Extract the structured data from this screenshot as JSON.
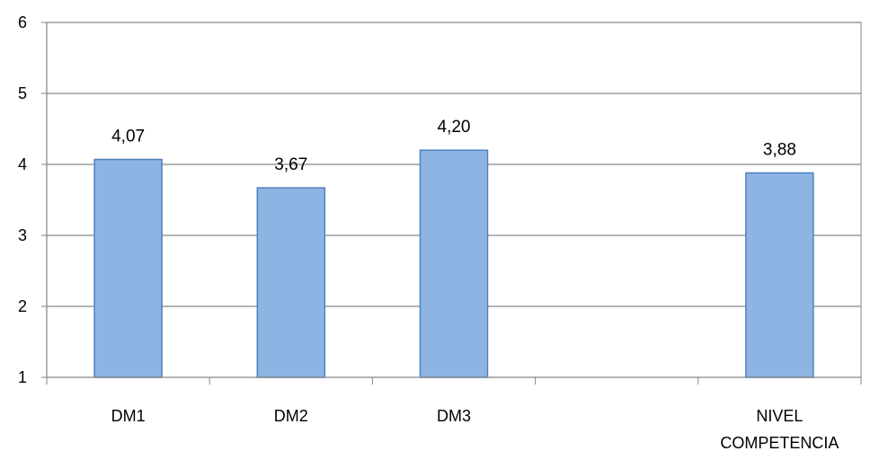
{
  "chart_data": {
    "type": "bar",
    "categories": [
      "DM1",
      "DM2",
      "DM3",
      "",
      "NIVEL\nCOMPETENCIA"
    ],
    "values": [
      4.07,
      3.67,
      4.2,
      null,
      3.88
    ],
    "data_labels": [
      "4,07",
      "3,67",
      "4,20",
      "",
      "3,88"
    ],
    "y_ticks": [
      "1",
      "2",
      "3",
      "4",
      "5",
      "6"
    ],
    "ylim": [
      1,
      6
    ],
    "title": "",
    "xlabel": "",
    "ylabel": "",
    "grid": true,
    "legend": "none",
    "colors": {
      "bar_fill": "#8EB4E3",
      "bar_stroke": "#4F81BD",
      "grid": "#868686",
      "axis": "#868686",
      "plot_border": "#868686",
      "plot_bg": "#F2F2F2"
    }
  }
}
